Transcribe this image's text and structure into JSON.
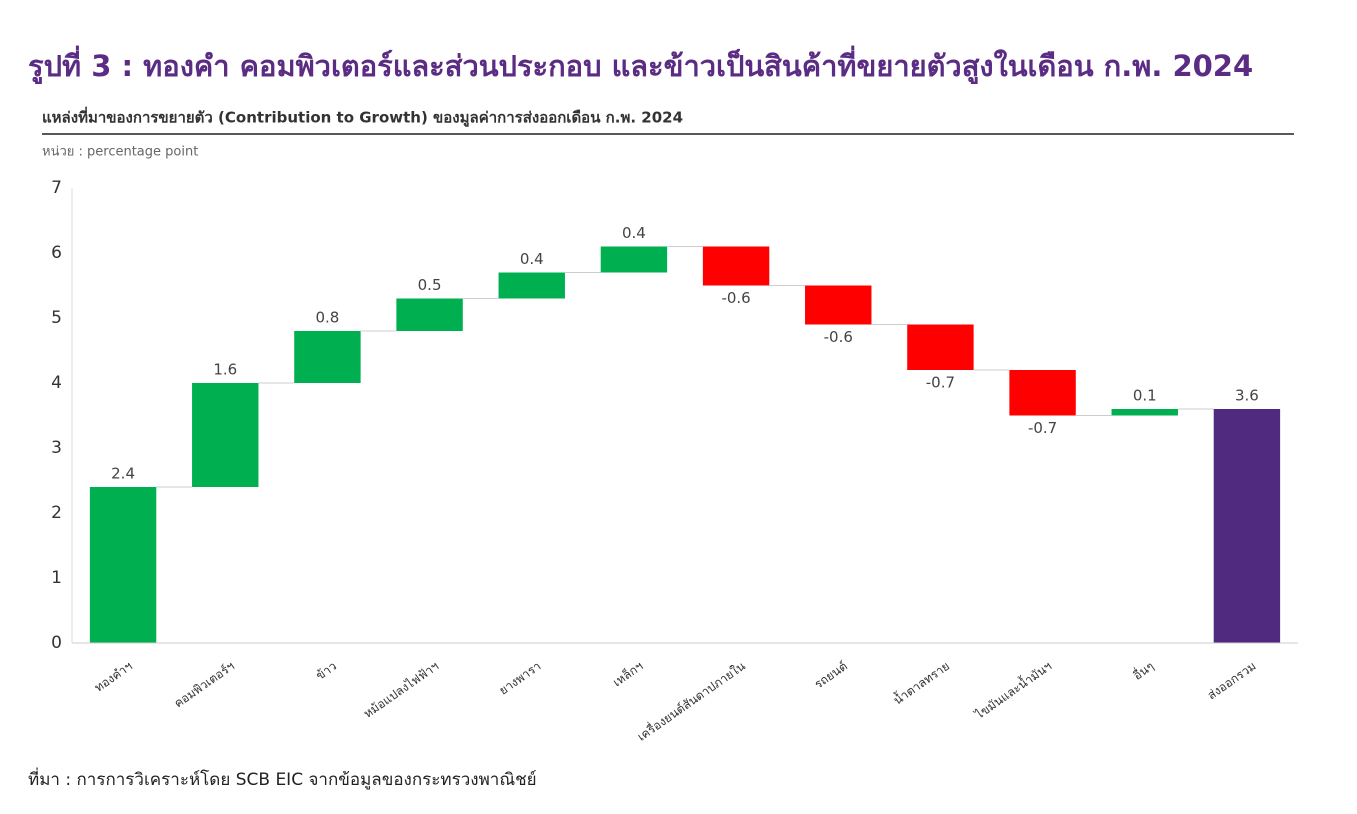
{
  "chart_data": {
    "type": "waterfall",
    "title": "รูปที่ 3 : ทองคำ คอมพิวเตอร์และส่วนประกอบ และข้าวเป็นสินค้าที่ขยายตัวสูงในเดือน ก.พ. 2024",
    "subtitle": "แหล่งที่มาของการขยายตัว (Contribution to Growth) ของมูลค่าการส่งออกเดือน ก.พ. 2024",
    "unit_label": "หน่วย : percentage point",
    "source": "ที่มา : การการวิเคราะห์โดย SCB EIC จากข้อมูลของกระทรวงพาณิชย์",
    "categories": [
      "ทองคำฯ",
      "คอมพิวเตอร์ฯ",
      "ข้าว",
      "หม้อแปลงไฟฟ้าฯ",
      "ยางพารา",
      "เหล็กฯ",
      "เครื่องยนต์สันดาปภายใน",
      "รถยนต์",
      "น้ำตาลทราย",
      "ไขมันและน้ำมันฯ",
      "อื่นๆ",
      "ส่งออกรวม"
    ],
    "values": [
      2.4,
      1.6,
      0.8,
      0.5,
      0.4,
      0.4,
      -0.6,
      -0.6,
      -0.7,
      -0.7,
      0.1,
      3.6
    ],
    "is_total": [
      false,
      false,
      false,
      false,
      false,
      false,
      false,
      false,
      false,
      false,
      false,
      true
    ],
    "colors": {
      "increase": "#00b050",
      "decrease": "#ff0000",
      "total": "#4f2a7f"
    },
    "ylim": [
      0,
      7
    ],
    "yticks": [
      0,
      1,
      2,
      3,
      4,
      5,
      6,
      7
    ],
    "grid": false
  }
}
